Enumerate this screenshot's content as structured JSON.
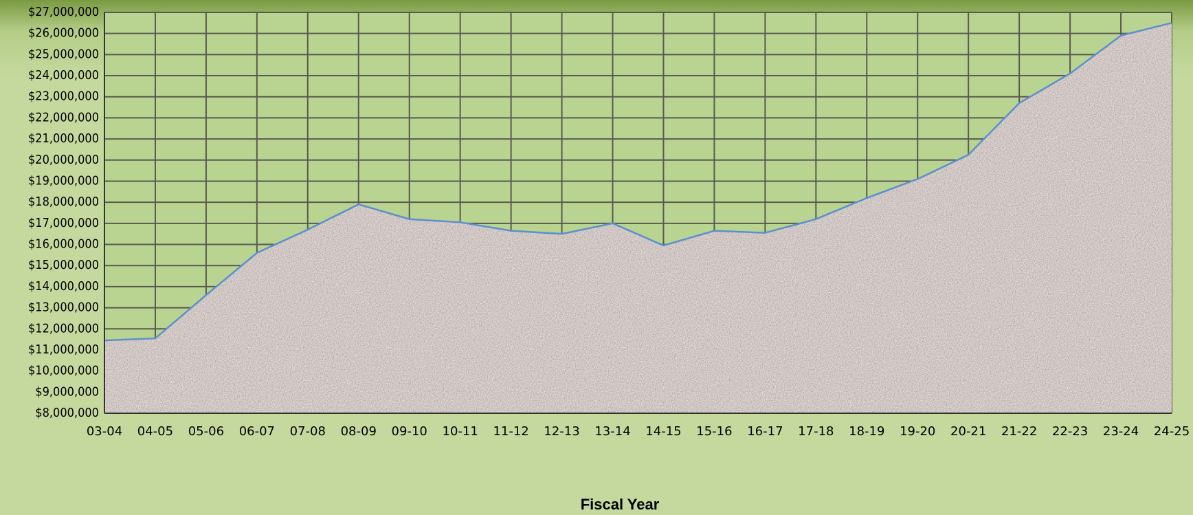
{
  "chart_data": {
    "type": "area",
    "x_label": "Fiscal Year",
    "categories": [
      "03-04",
      "04-05",
      "05-06",
      "06-07",
      "07-08",
      "08-09",
      "09-10",
      "10-11",
      "11-12",
      "12-13",
      "13-14",
      "14-15",
      "15-16",
      "16-17",
      "17-18",
      "18-19",
      "19-20",
      "20-21",
      "21-22",
      "22-23",
      "23-24",
      "24-25"
    ],
    "values": [
      11450000,
      11550000,
      13600000,
      15600000,
      16700000,
      17900000,
      17200000,
      17050000,
      16650000,
      16500000,
      17000000,
      15950000,
      16650000,
      16550000,
      17200000,
      18200000,
      19100000,
      20250000,
      22700000,
      24100000,
      25900000,
      26500000
    ],
    "color": "#9b8c82",
    "line_color": "#5b8fd0",
    "ylim": [
      8000000,
      27000000
    ],
    "yticks": [
      {
        "value": 8000000,
        "label": "$8,000,000"
      },
      {
        "value": 9000000,
        "label": "$9,000,000"
      },
      {
        "value": 10000000,
        "label": "$10,000,000"
      },
      {
        "value": 11000000,
        "label": "$11,000,000"
      },
      {
        "value": 12000000,
        "label": "$12,000,000"
      },
      {
        "value": 13000000,
        "label": "$13,000,000"
      },
      {
        "value": 14000000,
        "label": "$14,000,000"
      },
      {
        "value": 15000000,
        "label": "$15,000,000"
      },
      {
        "value": 16000000,
        "label": "$16,000,000"
      },
      {
        "value": 17000000,
        "label": "$17,000,000"
      },
      {
        "value": 18000000,
        "label": "$18,000,000"
      },
      {
        "value": 19000000,
        "label": "$19,000,000"
      },
      {
        "value": 20000000,
        "label": "$20,000,000"
      },
      {
        "value": 21000000,
        "label": "$21,000,000"
      },
      {
        "value": 22000000,
        "label": "$22,000,000"
      },
      {
        "value": 23000000,
        "label": "$23,000,000"
      },
      {
        "value": 24000000,
        "label": "$24,000,000"
      },
      {
        "value": 25000000,
        "label": "$25,000,000"
      },
      {
        "value": 26000000,
        "label": "$26,000,000"
      },
      {
        "value": 27000000,
        "label": "$27,000,000"
      }
    ],
    "grid": true
  }
}
